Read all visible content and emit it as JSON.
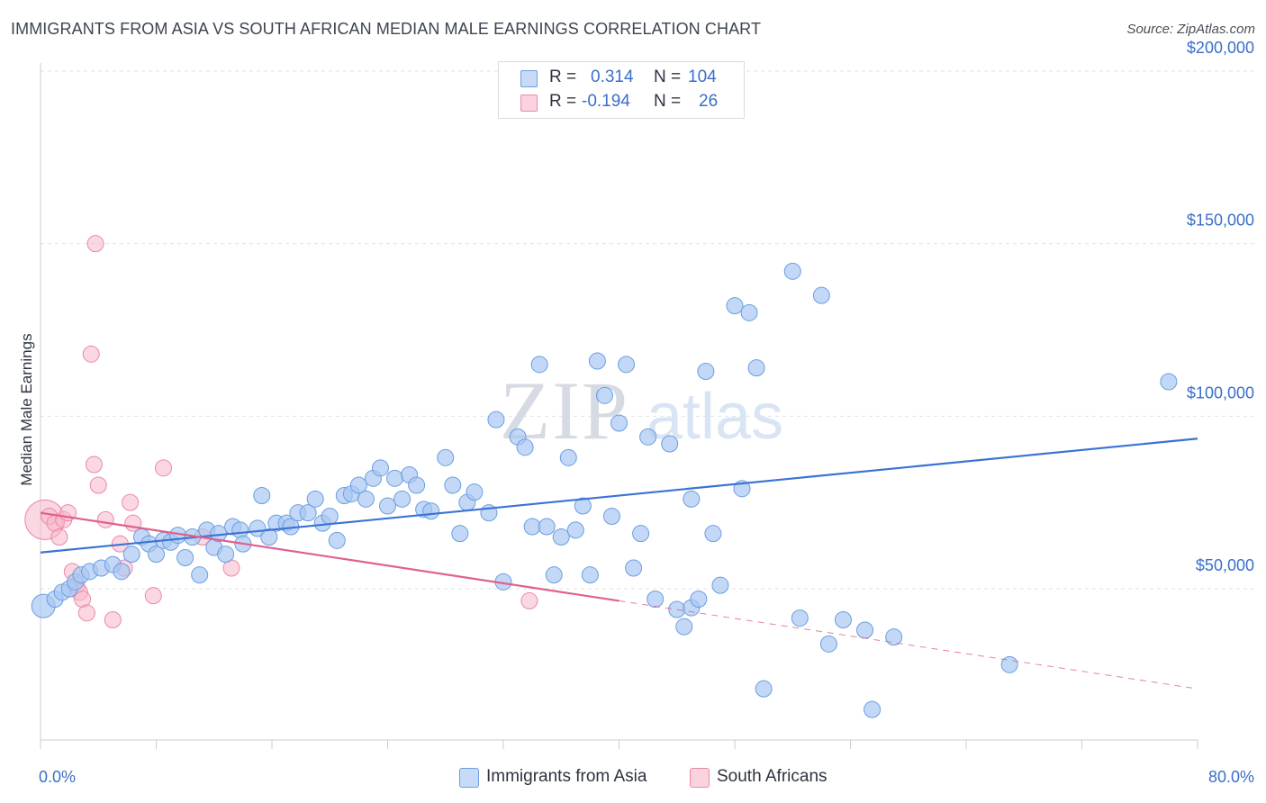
{
  "title": "IMMIGRANTS FROM ASIA VS SOUTH AFRICAN MEDIAN MALE EARNINGS CORRELATION CHART",
  "source": "Source: ZipAtlas.com",
  "watermark": {
    "zip": "ZIP",
    "atlas": "atlas"
  },
  "legend_top": {
    "rows": [
      {
        "r_label": "R =",
        "r_value": "0.314",
        "n_label": "N =",
        "n_value": "104",
        "color": "#a9c8f2"
      },
      {
        "r_label": "R =",
        "r_value": "-0.194",
        "n_label": "N =",
        "n_value": "26",
        "color": "#f7b6c9"
      }
    ]
  },
  "legend_bottom": {
    "items": [
      {
        "label": "Immigrants from Asia",
        "color": "#a9c8f2"
      },
      {
        "label": "South Africans",
        "color": "#f7b6c9"
      }
    ]
  },
  "chart_data": {
    "type": "scatter",
    "title": "IMMIGRANTS FROM ASIA VS SOUTH AFRICAN MEDIAN MALE EARNINGS CORRELATION CHART",
    "xlabel": "",
    "ylabel": "Median Male Earnings",
    "xlim": [
      0,
      80
    ],
    "ylim": [
      0,
      210000
    ],
    "x_tick_labels": [
      "0.0%",
      "80.0%"
    ],
    "y_ticks": [
      50000,
      100000,
      150000,
      200000
    ],
    "y_tick_labels": [
      "$50,000",
      "$100,000",
      "$150,000",
      "$200,000"
    ],
    "grid": true,
    "legend": "top-center",
    "series": [
      {
        "name": "Immigrants from Asia",
        "color": "#3a73d4",
        "fill": "#a9c8f2",
        "trend": {
          "x": [
            0,
            80
          ],
          "y": [
            60500,
            93500
          ],
          "style": "solid"
        },
        "points": [
          [
            0.2,
            45000
          ],
          [
            1,
            47000
          ],
          [
            1.5,
            49000
          ],
          [
            2,
            50000
          ],
          [
            2.4,
            52000
          ],
          [
            2.8,
            54000
          ],
          [
            3.4,
            55000
          ],
          [
            4.2,
            56000
          ],
          [
            5,
            57000
          ],
          [
            5.6,
            55000
          ],
          [
            6.3,
            60000
          ],
          [
            7,
            65000
          ],
          [
            7.5,
            63000
          ],
          [
            8,
            60000
          ],
          [
            8.5,
            64000
          ],
          [
            9,
            63500
          ],
          [
            9.5,
            65500
          ],
          [
            10,
            59000
          ],
          [
            10.5,
            65000
          ],
          [
            11,
            54000
          ],
          [
            11.5,
            67000
          ],
          [
            12,
            62000
          ],
          [
            12.3,
            66000
          ],
          [
            12.8,
            60000
          ],
          [
            13.3,
            68000
          ],
          [
            13.8,
            67000
          ],
          [
            14,
            63000
          ],
          [
            15,
            67500
          ],
          [
            15.3,
            77000
          ],
          [
            15.8,
            65000
          ],
          [
            16.3,
            69000
          ],
          [
            17,
            69000
          ],
          [
            17.3,
            68000
          ],
          [
            17.8,
            72000
          ],
          [
            18.5,
            72000
          ],
          [
            19,
            76000
          ],
          [
            19.5,
            69000
          ],
          [
            20,
            71000
          ],
          [
            20.5,
            64000
          ],
          [
            21,
            77000
          ],
          [
            21.5,
            77500
          ],
          [
            22,
            80000
          ],
          [
            22.5,
            76000
          ],
          [
            23,
            82000
          ],
          [
            23.5,
            85000
          ],
          [
            24,
            74000
          ],
          [
            24.5,
            82000
          ],
          [
            25,
            76000
          ],
          [
            25.5,
            83000
          ],
          [
            26,
            80000
          ],
          [
            26.5,
            73000
          ],
          [
            27,
            72500
          ],
          [
            28,
            88000
          ],
          [
            28.5,
            80000
          ],
          [
            29,
            66000
          ],
          [
            29.5,
            75000
          ],
          [
            30,
            78000
          ],
          [
            31,
            72000
          ],
          [
            31.5,
            99000
          ],
          [
            32,
            52000
          ],
          [
            33,
            94000
          ],
          [
            33.5,
            91000
          ],
          [
            34,
            68000
          ],
          [
            34.5,
            115000
          ],
          [
            35,
            68000
          ],
          [
            35.5,
            54000
          ],
          [
            36,
            65000
          ],
          [
            36.5,
            88000
          ],
          [
            37,
            67000
          ],
          [
            37.5,
            74000
          ],
          [
            38,
            54000
          ],
          [
            38.5,
            116000
          ],
          [
            39,
            106000
          ],
          [
            39.5,
            71000
          ],
          [
            40,
            98000
          ],
          [
            40.5,
            115000
          ],
          [
            41,
            56000
          ],
          [
            41.5,
            66000
          ],
          [
            42,
            94000
          ],
          [
            42.5,
            47000
          ],
          [
            43.5,
            92000
          ],
          [
            44,
            44000
          ],
          [
            44.5,
            39000
          ],
          [
            45,
            76000
          ],
          [
            45,
            44500
          ],
          [
            45.5,
            47000
          ],
          [
            46,
            113000
          ],
          [
            46.5,
            66000
          ],
          [
            47,
            51000
          ],
          [
            48,
            132000
          ],
          [
            48.5,
            79000
          ],
          [
            49,
            130000
          ],
          [
            49.5,
            114000
          ],
          [
            50,
            21000
          ],
          [
            52,
            142000
          ],
          [
            52.5,
            41500
          ],
          [
            54,
            135000
          ],
          [
            54.5,
            34000
          ],
          [
            55.5,
            41000
          ],
          [
            57,
            38000
          ],
          [
            57.5,
            15000
          ],
          [
            59,
            36000
          ],
          [
            67,
            28000
          ],
          [
            78,
            110000
          ]
        ]
      },
      {
        "name": "South Africans",
        "color": "#e0608f",
        "fill": "#f7b6c9",
        "trend": {
          "x": [
            0,
            40
          ],
          "y": [
            72000,
            46500
          ],
          "style": "solid",
          "extension": {
            "x": [
              40,
              80
            ],
            "y": [
              46500,
              21000
            ],
            "style": "dashed"
          }
        },
        "points": [
          [
            0.3,
            70000
          ],
          [
            0.6,
            71000
          ],
          [
            1,
            69000
          ],
          [
            1.3,
            65000
          ],
          [
            1.6,
            70000
          ],
          [
            1.9,
            72000
          ],
          [
            2.2,
            55000
          ],
          [
            2.5,
            51000
          ],
          [
            2.7,
            49000
          ],
          [
            2.9,
            47000
          ],
          [
            3.2,
            43000
          ],
          [
            3.5,
            118000
          ],
          [
            3.7,
            86000
          ],
          [
            3.8,
            150000
          ],
          [
            4,
            80000
          ],
          [
            4.5,
            70000
          ],
          [
            5,
            41000
          ],
          [
            5.5,
            63000
          ],
          [
            5.8,
            56000
          ],
          [
            6.2,
            75000
          ],
          [
            6.4,
            69000
          ],
          [
            7.8,
            48000
          ],
          [
            8.5,
            85000
          ],
          [
            11.2,
            65000
          ],
          [
            13.2,
            56000
          ],
          [
            33.8,
            46500
          ]
        ]
      }
    ]
  }
}
